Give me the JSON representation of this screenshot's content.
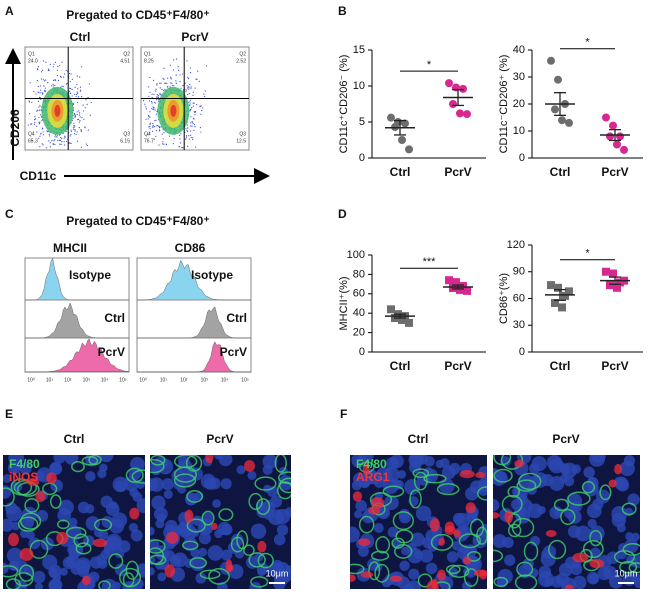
{
  "panel_labels": [
    "A",
    "B",
    "C",
    "D",
    "E",
    "F"
  ],
  "flow": {
    "title": "Pregated to CD45⁺F4/80⁺",
    "y_axis": "CD206",
    "x_axis": "CD11c",
    "quadrant_names": [
      "Q1",
      "Q2",
      "Q3",
      "Q4"
    ],
    "groups": [
      {
        "label": "Ctrl",
        "quadrants": [
          "24.0",
          "4.51",
          "6.15",
          "65.3"
        ]
      },
      {
        "label": "PcrV",
        "quadrants": [
          "8.25",
          "2.52",
          "12.5",
          "76.7"
        ]
      }
    ]
  },
  "histograms": {
    "title": "Pregated to CD45⁺F4/80⁺",
    "markers": [
      "MHCII",
      "CD86"
    ],
    "populations": [
      "Isotype",
      "Ctrl",
      "PcrV"
    ],
    "axis_ticks": [
      "10⁰",
      "10¹",
      "10²",
      "10³",
      "10⁴",
      "10⁵"
    ]
  },
  "images": [
    {
      "groups": [
        "Ctrl",
        "PcrV"
      ],
      "stains": [
        "F4/80",
        "iNOS"
      ],
      "scale": "10μm"
    },
    {
      "groups": [
        "Ctrl",
        "PcrV"
      ],
      "stains": [
        "F4/80",
        "ARG1"
      ],
      "scale": "10μm"
    }
  ],
  "chart_data": [
    {
      "type": "dot",
      "y_label": "CD11c⁺CD206⁻ (%)",
      "categories": [
        "Ctrl",
        "PcrV"
      ],
      "colors": [
        "#6d6d6d",
        "#d6288f"
      ],
      "marker": "circle",
      "points": [
        [
          5.6,
          5.0,
          4.8,
          4.3,
          2.5,
          1.2
        ],
        [
          10.4,
          9.8,
          9.6,
          7.5,
          6.2,
          6.1
        ]
      ],
      "means": [
        4.2,
        8.4
      ],
      "sems": [
        1.0,
        1.1
      ],
      "significance": "*",
      "ylim": [
        0,
        15
      ],
      "yticks": [
        0,
        5,
        10,
        15
      ]
    },
    {
      "type": "dot",
      "y_label": "CD11c⁻CD206⁺ (%)",
      "categories": [
        "Ctrl",
        "PcrV"
      ],
      "colors": [
        "#6d6d6d",
        "#d6288f"
      ],
      "marker": "circle",
      "points": [
        [
          36,
          29,
          20,
          18,
          14,
          13
        ],
        [
          15,
          12,
          8,
          8,
          5,
          3
        ]
      ],
      "means": [
        20,
        8.5
      ],
      "sems": [
        4.2,
        2.0
      ],
      "significance": "*",
      "ylim": [
        0,
        40
      ],
      "yticks": [
        0,
        10,
        20,
        30,
        40
      ]
    },
    {
      "type": "dot",
      "y_label": "MHCII⁺(%)",
      "categories": [
        "Ctrl",
        "PcrV"
      ],
      "colors": [
        "#6d6d6d",
        "#d6288f"
      ],
      "marker": "square",
      "points": [
        [
          44,
          39,
          37,
          35,
          33,
          30
        ],
        [
          74,
          72,
          68,
          66,
          64,
          63
        ]
      ],
      "means": [
        37,
        67
      ],
      "sems": [
        2,
        2
      ],
      "significance": "***",
      "ylim": [
        0,
        100
      ],
      "yticks": [
        0,
        20,
        40,
        60,
        80,
        100
      ]
    },
    {
      "type": "dot",
      "y_label": "CD86⁺(%)",
      "categories": [
        "Ctrl",
        "PcrV"
      ],
      "colors": [
        "#6d6d6d",
        "#d6288f"
      ],
      "marker": "square",
      "points": [
        [
          75,
          72,
          63,
          55,
          50,
          68
        ],
        [
          90,
          88,
          78,
          75,
          72,
          80
        ]
      ],
      "means": [
        64,
        80
      ],
      "sems": [
        6,
        4
      ],
      "significance": "*",
      "ylim": [
        0,
        120
      ],
      "yticks": [
        0,
        30,
        60,
        90,
        120
      ]
    }
  ]
}
